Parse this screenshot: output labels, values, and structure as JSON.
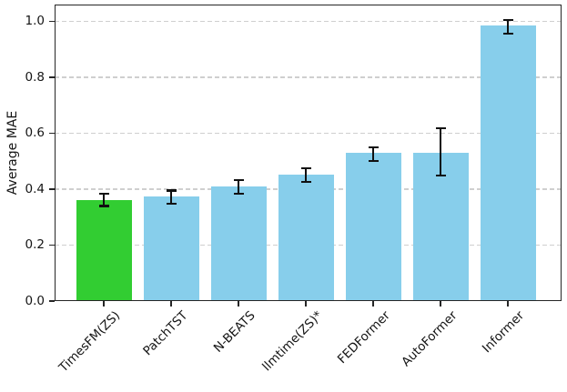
{
  "chart_data": {
    "type": "bar",
    "title": "",
    "xlabel": "",
    "ylabel": "Average MAE",
    "ylim": [
      0,
      1.06
    ],
    "yticks": [
      "0.0",
      "0.2",
      "0.4",
      "0.6",
      "0.8",
      "1.0"
    ],
    "grid": {
      "axis": "y",
      "style": "dashed",
      "color": "#cfcfcf"
    },
    "legend": "none",
    "categories": [
      "TimesFM(ZS)",
      "PatchTST",
      "N-BEATS",
      "llmtime(ZS)*",
      "FEDFormer",
      "AutoFormer",
      "Informer"
    ],
    "bars": [
      {
        "label": "TimesFM(ZS)",
        "value": 0.362,
        "err_low": 0.34,
        "err_high": 0.385,
        "color": "#32CD32",
        "highlight": true
      },
      {
        "label": "PatchTST",
        "value": 0.373,
        "err_low": 0.349,
        "err_high": 0.395,
        "color": "#87CEEB",
        "highlight": false
      },
      {
        "label": "N-BEATS",
        "value": 0.41,
        "err_low": 0.385,
        "err_high": 0.432,
        "color": "#87CEEB",
        "highlight": false
      },
      {
        "label": "llmtime(ZS)*",
        "value": 0.452,
        "err_low": 0.426,
        "err_high": 0.475,
        "color": "#87CEEB",
        "highlight": false
      },
      {
        "label": "FEDFormer",
        "value": 0.529,
        "err_low": 0.501,
        "err_high": 0.55,
        "color": "#87CEEB",
        "highlight": false
      },
      {
        "label": "AutoFormer",
        "value": 0.531,
        "err_low": 0.449,
        "err_high": 0.618,
        "color": "#87CEEB",
        "highlight": false
      },
      {
        "label": "Informer",
        "value": 0.984,
        "err_low": 0.957,
        "err_high": 1.006,
        "color": "#87CEEB",
        "highlight": false
      }
    ],
    "colors": {
      "highlight_bar": "#32CD32",
      "default_bar": "#87CEEB",
      "error_bar": "#111111",
      "axis": "#262626",
      "gridline": "#cfcfcf",
      "tick_label": "#141414"
    }
  }
}
